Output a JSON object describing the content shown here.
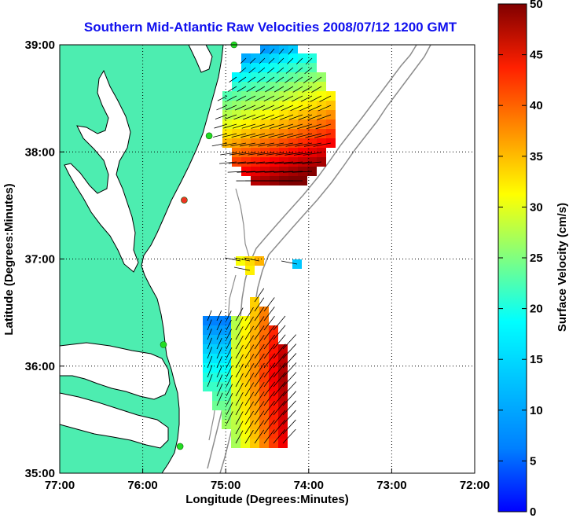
{
  "title": "Southern Mid-Atlantic Raw Velocities 2008/07/12 1200 GMT",
  "x_axis": {
    "label": "Longitude (Degrees:Minutes)",
    "ticks": [
      "77:00",
      "76:00",
      "75:00",
      "74:00",
      "73:00",
      "72:00"
    ]
  },
  "y_axis": {
    "label": "Latitude (Degrees:Minutes)",
    "ticks": [
      "39:00",
      "38:00",
      "37:00",
      "36:00",
      "35:00"
    ]
  },
  "colorbar": {
    "label": "Surface Velocity (cm/s)",
    "min": 0,
    "max": 50,
    "ticks": [
      "50",
      "45",
      "40",
      "35",
      "30",
      "25",
      "20",
      "15",
      "10",
      "5",
      "0"
    ],
    "colormap": "jet"
  },
  "colors": {
    "land": "#4dedb0",
    "coastline": "#000000",
    "bathymetry": "#8c8c8c",
    "station": "#22dd22",
    "station_offline": "#ee3322",
    "title": "#1010ee"
  },
  "chart_data": {
    "type": "heatmap",
    "xlim": [
      -77,
      -72
    ],
    "ylim": [
      35,
      39
    ],
    "grid": true,
    "stations": [
      {
        "lon": -74.9,
        "lat": 39.0,
        "status": "active"
      },
      {
        "lon": -75.2,
        "lat": 38.15,
        "status": "active"
      },
      {
        "lon": -75.5,
        "lat": 37.55,
        "status": "offline"
      },
      {
        "lon": -75.75,
        "lat": 36.2,
        "status": "active"
      },
      {
        "lon": -75.55,
        "lat": 35.25,
        "status": "active"
      }
    ],
    "velocity_regions": [
      {
        "name": "north",
        "lon_min": -75.1,
        "lon_max": -73.7,
        "lat_min": 37.6,
        "lat_max": 38.95,
        "speed_range": [
          8,
          50
        ]
      },
      {
        "name": "south",
        "lon_min": -75.3,
        "lon_max": -74.2,
        "lat_min": 35.2,
        "lat_max": 36.6,
        "speed_range": [
          10,
          50
        ]
      }
    ]
  }
}
